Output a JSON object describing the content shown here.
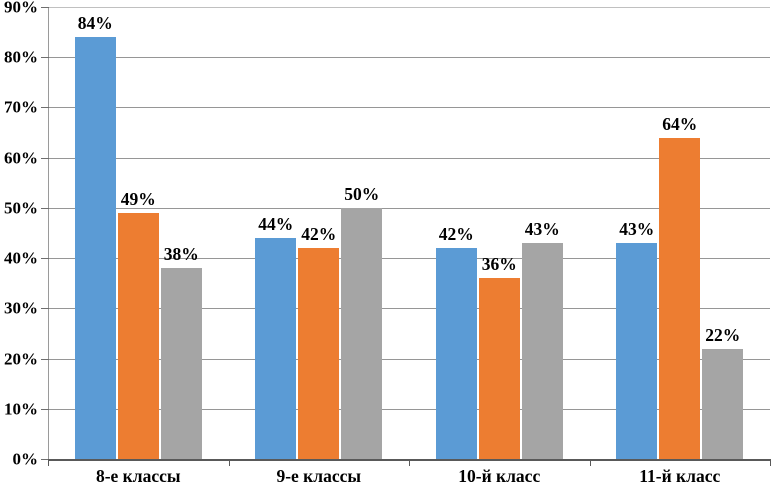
{
  "chart_data": {
    "type": "bar",
    "title": "",
    "xlabel": "",
    "ylabel": "",
    "categories": [
      "8-е классы",
      "9-е классы",
      "10-й класс",
      "11-й класс"
    ],
    "series": [
      {
        "color": "#5B9BD5",
        "values": [
          84,
          44,
          42,
          43
        ],
        "labels": [
          "84%",
          "44%",
          "42%",
          "43%"
        ]
      },
      {
        "color": "#ED7D31",
        "values": [
          49,
          42,
          36,
          64
        ],
        "labels": [
          "49%",
          "42%",
          "36%",
          "64%"
        ]
      },
      {
        "color": "#A5A5A5",
        "values": [
          38,
          50,
          43,
          22
        ],
        "labels": [
          "38%",
          "50%",
          "43%",
          "22%"
        ]
      }
    ],
    "ylim": [
      0,
      90
    ],
    "ytick_step": 10,
    "ytick_labels": [
      "0%",
      "10%",
      "20%",
      "30%",
      "40%",
      "50%",
      "60%",
      "70%",
      "80%",
      "90%"
    ],
    "grid": true,
    "legend": false,
    "value_labels_shown": true,
    "axis_color": "#595959",
    "grid_color": "#969696",
    "background_color": "#FFFFFF"
  }
}
